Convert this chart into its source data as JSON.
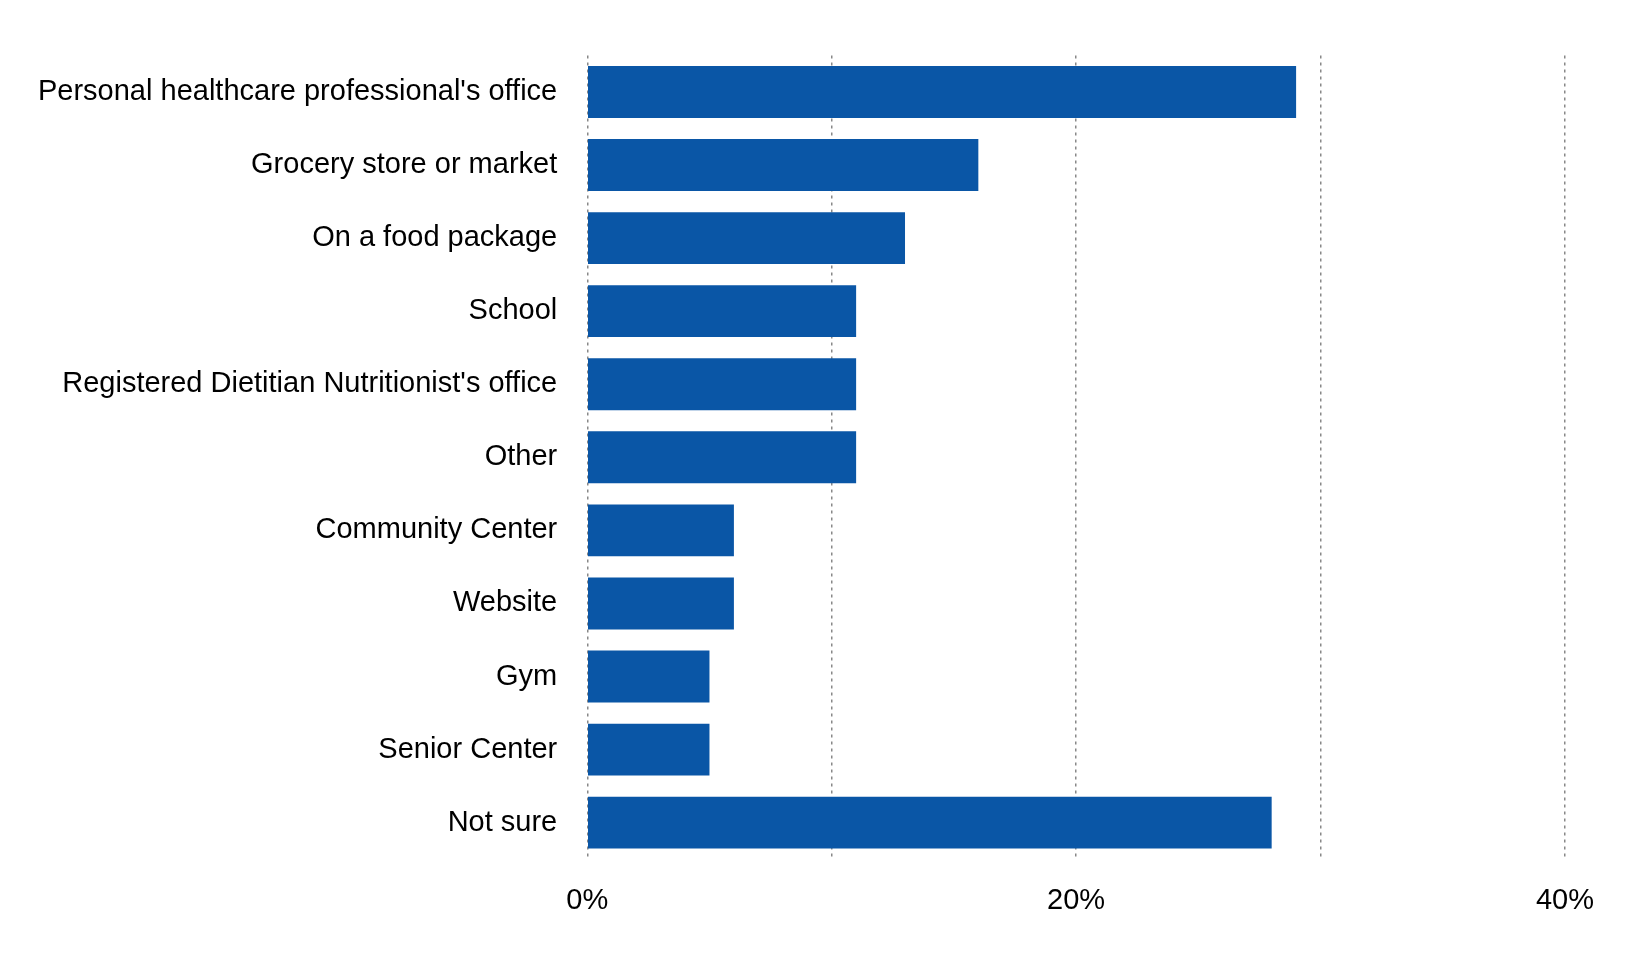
{
  "chart_data": {
    "type": "bar",
    "orientation": "horizontal",
    "categories": [
      "Personal healthcare professional's office",
      "Grocery store or market",
      "On a food package",
      "School",
      "Registered Dietitian Nutritionist's office",
      "Other",
      "Community Center",
      "Website",
      "Gym",
      "Senior Center",
      "Not sure"
    ],
    "values": [
      29,
      16,
      13,
      11,
      11,
      11,
      6,
      6,
      5,
      5,
      28
    ],
    "color": "#0a56a6",
    "xlim": [
      0,
      40
    ],
    "xticks": [
      {
        "value": 0,
        "label": "0%"
      },
      {
        "value": 10,
        "label": null
      },
      {
        "value": 20,
        "label": "20%"
      },
      {
        "value": 30,
        "label": null
      },
      {
        "value": 40,
        "label": "40%"
      }
    ],
    "grid": "x",
    "legend": false
  }
}
